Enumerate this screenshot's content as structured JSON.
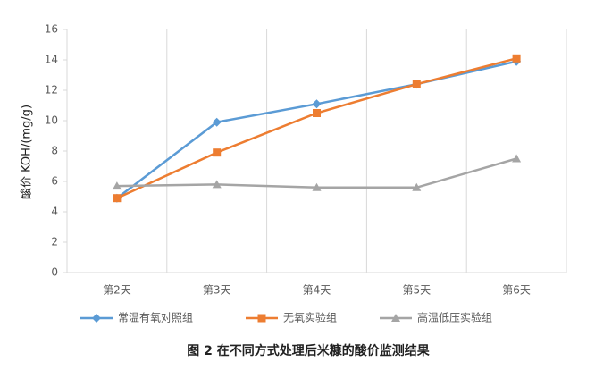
{
  "chart_data": {
    "type": "line",
    "y_label": "酸价 KOH/(mg/g)",
    "caption": "图 2 在不同方式处理后米糠的酸价监测结果",
    "categories": [
      "第2天",
      "第3天",
      "第4天",
      "第5天",
      "第6天"
    ],
    "series": [
      {
        "name": "常温有氧对照组",
        "color": "#5b9bd5",
        "marker": "diamond",
        "values": [
          4.9,
          9.9,
          11.1,
          12.4,
          13.9
        ]
      },
      {
        "name": "无氧实验组",
        "color": "#ed7d31",
        "marker": "square",
        "values": [
          4.9,
          7.9,
          10.5,
          12.4,
          14.1
        ]
      },
      {
        "name": "高温低压实验组",
        "color": "#a5a5a5",
        "marker": "triangle",
        "values": [
          5.7,
          5.8,
          5.6,
          5.6,
          7.5
        ]
      }
    ],
    "ylim": [
      0,
      16
    ],
    "yticks": [
      0,
      2,
      4,
      6,
      8,
      10,
      12,
      14,
      16
    ]
  }
}
